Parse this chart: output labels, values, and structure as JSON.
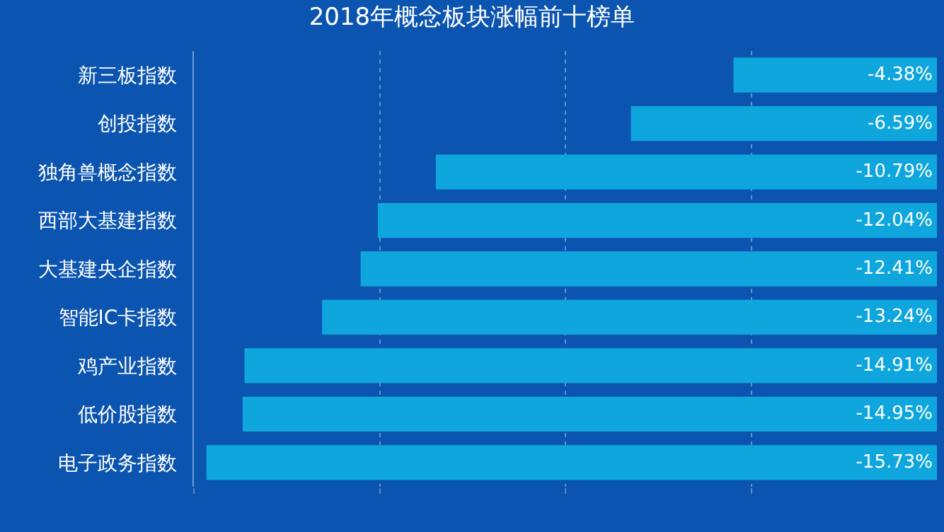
{
  "chart_data": {
    "type": "bar",
    "orientation": "horizontal",
    "title": "2018年概念板块涨幅前十榜单",
    "categories": [
      "新三板指数",
      "创投指数",
      "独角兽概念指数",
      "西部大基建指数",
      "大基建央企指数",
      "智能IC卡指数",
      "鸡产业指数",
      "低价股指数",
      "电子政务指数"
    ],
    "values": [
      -4.38,
      -6.59,
      -10.79,
      -12.04,
      -12.41,
      -13.24,
      -14.91,
      -14.95,
      -15.73
    ],
    "value_labels": [
      "-4.38%",
      "-6.59%",
      "-10.79%",
      "-12.04%",
      "-12.41%",
      "-13.24%",
      "-14.91%",
      "-14.95%",
      "-15.73%"
    ],
    "color": "#0ea6dd",
    "xlim": [
      -16,
      0
    ],
    "xticks": [
      {
        "value": -16,
        "label": null
      },
      {
        "value": -12,
        "label": null
      },
      {
        "value": -8,
        "label": null
      },
      {
        "value": -4,
        "label": null
      }
    ],
    "tick_labels": "y",
    "grid": "x",
    "legend": false
  }
}
